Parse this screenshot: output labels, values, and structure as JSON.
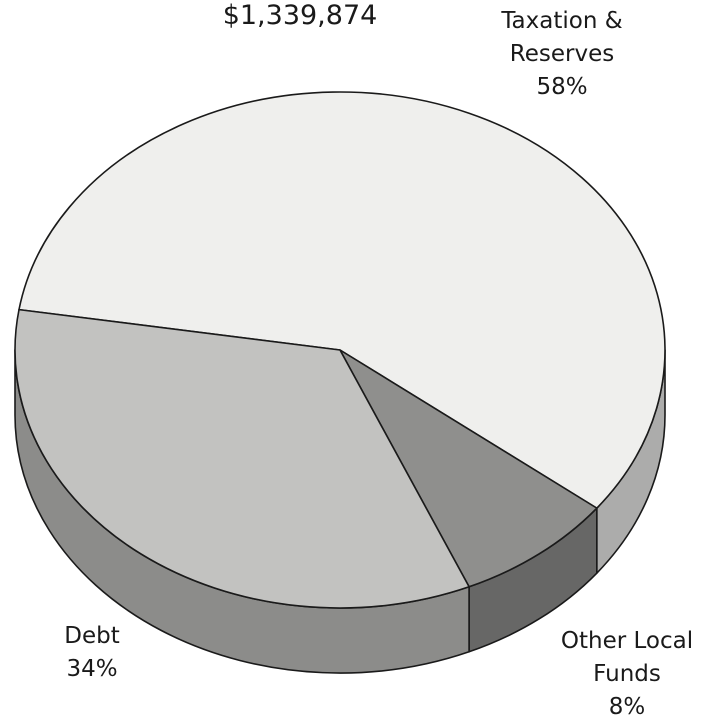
{
  "chart_data": {
    "type": "pie",
    "title": "$1,339,874",
    "slices": [
      {
        "name": "Taxation & Reserves",
        "lines": [
          "Taxation &",
          "Reserves"
        ],
        "value": 58,
        "label": "58%",
        "color": "#efefed"
      },
      {
        "name": "Other Local Funds",
        "lines": [
          "Other Local",
          "Funds"
        ],
        "value": 8,
        "label": "8%",
        "color": "#8f8f8d"
      },
      {
        "name": "Debt",
        "lines": [
          "Debt"
        ],
        "value": 34,
        "label": "34%",
        "color": "#c2c2c0"
      }
    ],
    "style": "3d-tilted"
  }
}
